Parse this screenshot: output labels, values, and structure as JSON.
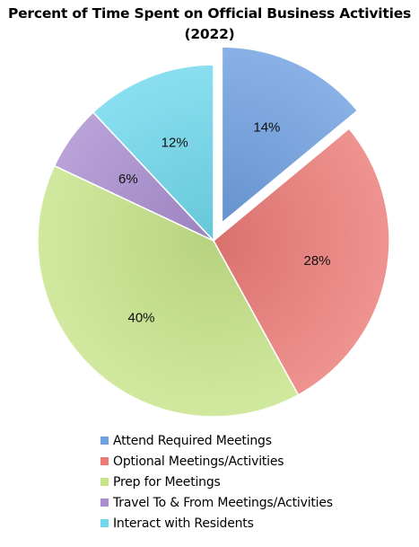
{
  "chart_data": {
    "type": "pie",
    "title": "Percent of Time Spent on Official Business Activities",
    "subtitle": "(2022)",
    "slices": [
      {
        "label": "Attend Required Meetings",
        "value": 14,
        "value_label": "14%",
        "color": "#6fa0e0",
        "exploded": true
      },
      {
        "label": "Optional Meetings/Activities",
        "value": 28,
        "value_label": "28%",
        "color": "#ec7b78",
        "exploded": false
      },
      {
        "label": "Prep for Meetings",
        "value": 40,
        "value_label": "40%",
        "color": "#c7e48a",
        "exploded": false
      },
      {
        "label": "Travel To & From Meetings/Activities",
        "value": 6,
        "value_label": "6%",
        "color": "#a88ed0",
        "exploded": false
      },
      {
        "label": "Interact with Residents",
        "value": 12,
        "value_label": "12%",
        "color": "#6fd8ec",
        "exploded": false
      }
    ],
    "legend": {
      "position": "bottom"
    }
  }
}
